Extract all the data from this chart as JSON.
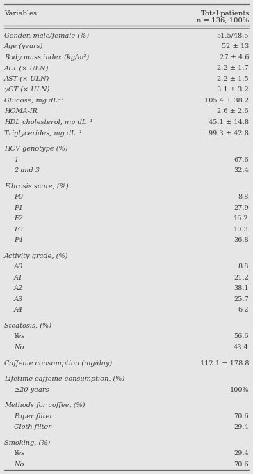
{
  "title_col1": "Variables",
  "title_col2": "Total patients",
  "subtitle_col2": "n = 136, 100%",
  "bg_color": "#e6e6e6",
  "rows": [
    {
      "label": "Gender, male/female (%)",
      "value": "51.5/48.5",
      "indent": 0,
      "section_gap": false
    },
    {
      "label": "Age (years)",
      "value": "52 ± 13",
      "indent": 0,
      "section_gap": false
    },
    {
      "label": "Body mass index (kg/m²)",
      "value": "27 ± 4.6",
      "indent": 0,
      "section_gap": false
    },
    {
      "label": "ALT (× ULN)",
      "value": "2.2 ± 1.7",
      "indent": 0,
      "section_gap": false
    },
    {
      "label": "AST (× ULN)",
      "value": "2.2 ± 1.5",
      "indent": 0,
      "section_gap": false
    },
    {
      "label": "γGT (× ULN)",
      "value": "3.1 ± 3.2",
      "indent": 0,
      "section_gap": false
    },
    {
      "label": "Glucose, mg dL⁻¹",
      "value": "105.4 ± 38.2",
      "indent": 0,
      "section_gap": false
    },
    {
      "label": "HOMA-IR",
      "value": "2.6 ± 2.6",
      "indent": 0,
      "section_gap": false
    },
    {
      "label": "HDL cholesterol, mg dL⁻¹",
      "value": "45.1 ± 14.8",
      "indent": 0,
      "section_gap": false
    },
    {
      "label": "Triglycerides, mg dL⁻¹",
      "value": "99.3 ± 42.8",
      "indent": 0,
      "section_gap": false
    },
    {
      "label": "HCV genotype (%)",
      "value": "",
      "indent": 0,
      "section_gap": true
    },
    {
      "label": "1",
      "value": "67.6",
      "indent": 1,
      "section_gap": false
    },
    {
      "label": "2 and 3",
      "value": "32.4",
      "indent": 1,
      "section_gap": false
    },
    {
      "label": "Fibrosis score, (%)",
      "value": "",
      "indent": 0,
      "section_gap": true
    },
    {
      "label": "F0",
      "value": "8.8",
      "indent": 1,
      "section_gap": false
    },
    {
      "label": "F1",
      "value": "27.9",
      "indent": 1,
      "section_gap": false
    },
    {
      "label": "F2",
      "value": "16.2",
      "indent": 1,
      "section_gap": false
    },
    {
      "label": "F3",
      "value": "10.3",
      "indent": 1,
      "section_gap": false
    },
    {
      "label": "F4",
      "value": "36.8",
      "indent": 1,
      "section_gap": false
    },
    {
      "label": "Activity grade, (%)",
      "value": "",
      "indent": 0,
      "section_gap": true
    },
    {
      "label": "A0",
      "value": "8.8",
      "indent": 1,
      "section_gap": false
    },
    {
      "label": "A1",
      "value": "21.2",
      "indent": 1,
      "section_gap": false
    },
    {
      "label": "A2",
      "value": "38.1",
      "indent": 1,
      "section_gap": false
    },
    {
      "label": "A3",
      "value": "25.7",
      "indent": 1,
      "section_gap": false
    },
    {
      "label": "A4",
      "value": "6.2",
      "indent": 1,
      "section_gap": false
    },
    {
      "label": "Steatosis, (%)",
      "value": "",
      "indent": 0,
      "section_gap": true
    },
    {
      "label": "Yes",
      "value": "56.6",
      "indent": 1,
      "section_gap": false
    },
    {
      "label": "No",
      "value": "43.4",
      "indent": 1,
      "section_gap": false
    },
    {
      "label": "Caffeine consumption (mg/day)",
      "value": "112.1 ± 178.8",
      "indent": 0,
      "section_gap": true
    },
    {
      "label": "Lifetime caffeine consumption, (%)",
      "value": "",
      "indent": 0,
      "section_gap": true
    },
    {
      "label": "≥20 years",
      "value": "100%",
      "indent": 1,
      "section_gap": false
    },
    {
      "label": "Methods for coffee, (%)",
      "value": "",
      "indent": 0,
      "section_gap": true
    },
    {
      "label": "Paper filter",
      "value": "70.6",
      "indent": 1,
      "section_gap": false
    },
    {
      "label": "Cloth filter",
      "value": "29.4",
      "indent": 1,
      "section_gap": false
    },
    {
      "label": "Smoking, (%)",
      "value": "",
      "indent": 0,
      "section_gap": true
    },
    {
      "label": "Yes",
      "value": "29.4",
      "indent": 1,
      "section_gap": false
    },
    {
      "label": "No",
      "value": "70.6",
      "indent": 1,
      "section_gap": false
    }
  ],
  "text_color": "#3a3a3a",
  "header_color": "#2a2a2a",
  "line_color": "#666666",
  "font_size": 7.0,
  "header_font_size": 7.2
}
